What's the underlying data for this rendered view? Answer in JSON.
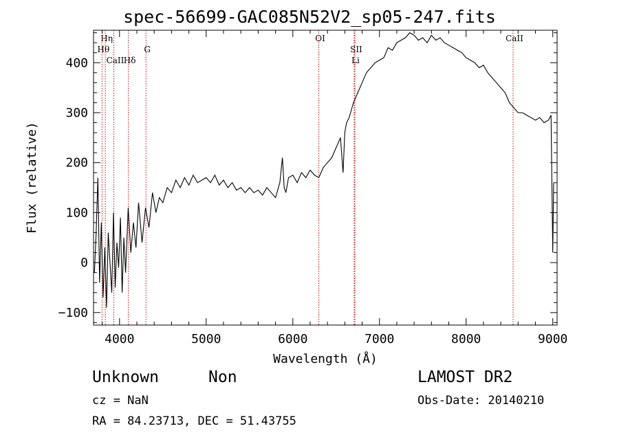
{
  "chart_data": {
    "type": "line",
    "title": "spec-56699-GAC085N52V2_sp05-247.fits",
    "xlabel": "Wavelength (Å)",
    "ylabel": "Flux (relative)",
    "xlim": [
      3700,
      9050
    ],
    "ylim": [
      -125,
      465
    ],
    "x_ticks": [
      4000,
      5000,
      6000,
      7000,
      8000,
      9000
    ],
    "y_ticks": [
      -100,
      0,
      100,
      200,
      300,
      400
    ],
    "x_tick_labels": [
      "4000",
      "5000",
      "6000",
      "7000",
      "8000",
      "9000"
    ],
    "y_tick_labels": [
      "−100",
      "0",
      "100",
      "200",
      "300",
      "400"
    ],
    "series": [
      {
        "name": "flux",
        "color": "#000000",
        "x": [
          3710,
          3730,
          3750,
          3770,
          3790,
          3810,
          3830,
          3850,
          3870,
          3890,
          3910,
          3930,
          3950,
          3970,
          3990,
          4010,
          4030,
          4050,
          4070,
          4100,
          4130,
          4160,
          4190,
          4220,
          4260,
          4300,
          4340,
          4380,
          4420,
          4460,
          4500,
          4550,
          4600,
          4650,
          4700,
          4750,
          4800,
          4850,
          4900,
          4950,
          5000,
          5050,
          5100,
          5150,
          5200,
          5250,
          5300,
          5350,
          5400,
          5450,
          5500,
          5550,
          5600,
          5650,
          5700,
          5750,
          5800,
          5850,
          5880,
          5900,
          5920,
          5950,
          6000,
          6050,
          6100,
          6150,
          6200,
          6250,
          6300,
          6350,
          6400,
          6450,
          6500,
          6550,
          6580,
          6600,
          6620,
          6650,
          6700,
          6750,
          6800,
          6850,
          6900,
          6950,
          7000,
          7050,
          7100,
          7150,
          7200,
          7250,
          7300,
          7350,
          7400,
          7450,
          7500,
          7550,
          7600,
          7650,
          7700,
          7750,
          7800,
          7850,
          7900,
          7950,
          8000,
          8050,
          8100,
          8150,
          8200,
          8250,
          8300,
          8350,
          8400,
          8450,
          8500,
          8550,
          8600,
          8650,
          8700,
          8750,
          8800,
          8850,
          8900,
          8950,
          8980,
          9000,
          9010
        ],
        "y": [
          -20,
          60,
          170,
          -40,
          80,
          -70,
          30,
          -90,
          60,
          0,
          -60,
          100,
          -50,
          40,
          -10,
          90,
          -60,
          50,
          -20,
          110,
          20,
          80,
          30,
          120,
          40,
          110,
          70,
          140,
          100,
          130,
          120,
          150,
          140,
          165,
          150,
          170,
          155,
          175,
          160,
          165,
          170,
          160,
          175,
          155,
          165,
          150,
          160,
          145,
          150,
          140,
          150,
          140,
          145,
          135,
          150,
          140,
          130,
          160,
          210,
          150,
          140,
          170,
          175,
          160,
          180,
          170,
          185,
          175,
          170,
          190,
          200,
          210,
          230,
          250,
          180,
          260,
          280,
          290,
          320,
          340,
          360,
          380,
          390,
          400,
          405,
          410,
          430,
          425,
          440,
          445,
          450,
          460,
          455,
          445,
          450,
          440,
          455,
          445,
          450,
          440,
          435,
          430,
          425,
          420,
          410,
          405,
          400,
          390,
          395,
          380,
          370,
          360,
          350,
          340,
          320,
          310,
          300,
          300,
          295,
          290,
          285,
          290,
          280,
          285,
          295,
          20,
          160
        ]
      }
    ],
    "line_marks": [
      {
        "name": "Hη",
        "wavelength": 3836
      },
      {
        "name": "Hθ",
        "wavelength": 3798
      },
      {
        "name": "CaII",
        "wavelength": 3934
      },
      {
        "name": "Hδ",
        "wavelength": 4102
      },
      {
        "name": "G",
        "wavelength": 4305
      },
      {
        "name": "OI",
        "wavelength": 6300
      },
      {
        "name": "SII",
        "wavelength": 6716
      },
      {
        "name": "Li",
        "wavelength": 6708
      },
      {
        "name": "CaII",
        "wavelength": 8542
      }
    ],
    "line_mark_color": "#cc0000"
  },
  "info": {
    "class": "Unknown",
    "subclass": "Non",
    "survey": "LAMOST DR2",
    "cz": "cz = NaN",
    "obs_date": "Obs-Date: 20140210",
    "radec": "RA =  84.23713, DEC =  51.43755"
  }
}
